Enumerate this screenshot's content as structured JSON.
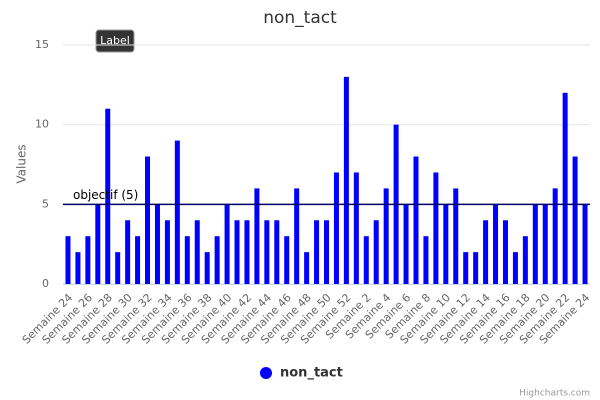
{
  "chart_data": {
    "type": "bar",
    "title": "non_tact",
    "y_axis_label": "Values",
    "categories": [
      "Semaine 24",
      null,
      "Semaine 26",
      null,
      "Semaine 28",
      null,
      "Semaine 30",
      null,
      "Semaine 32",
      null,
      "Semaine 34",
      null,
      "Semaine 36",
      null,
      "Semaine 38",
      null,
      "Semaine 40",
      null,
      "Semaine 42",
      null,
      "Semaine 44",
      null,
      "Semaine 46",
      null,
      "Semaine 48",
      null,
      "Semaine 50",
      null,
      "Semaine 52",
      null,
      "Semaine 2",
      null,
      "Semaine 4",
      null,
      "Semaine 6",
      null,
      "Semaine 8",
      null,
      "Semaine 10",
      null,
      "Semaine 12",
      null,
      "Semaine 14",
      null,
      "Semaine 16",
      null,
      "Semaine 18",
      null,
      "Semaine 20",
      null,
      "Semaine 22",
      null,
      "Semaine 24"
    ],
    "series": [
      {
        "name": "non_tact",
        "color": "#0000ff",
        "values": [
          3,
          2,
          3,
          5,
          11,
          2,
          4,
          3,
          8,
          5,
          4,
          9,
          3,
          4,
          2,
          3,
          5,
          4,
          4,
          6,
          4,
          4,
          3,
          6,
          2,
          4,
          4,
          7,
          13,
          7,
          3,
          4,
          6,
          10,
          5,
          8,
          3,
          7,
          5,
          6,
          2,
          2,
          4,
          5,
          4,
          2,
          3,
          5,
          5,
          6,
          12,
          8,
          5
        ]
      }
    ],
    "ylim": [
      0,
      15
    ],
    "yticks": [
      0,
      5,
      10,
      15
    ],
    "grid": true,
    "plot_line": {
      "value": 5,
      "label": "objectif (5)",
      "color": "#000066"
    },
    "annotation": "Label",
    "credits": "Highcharts.com"
  }
}
